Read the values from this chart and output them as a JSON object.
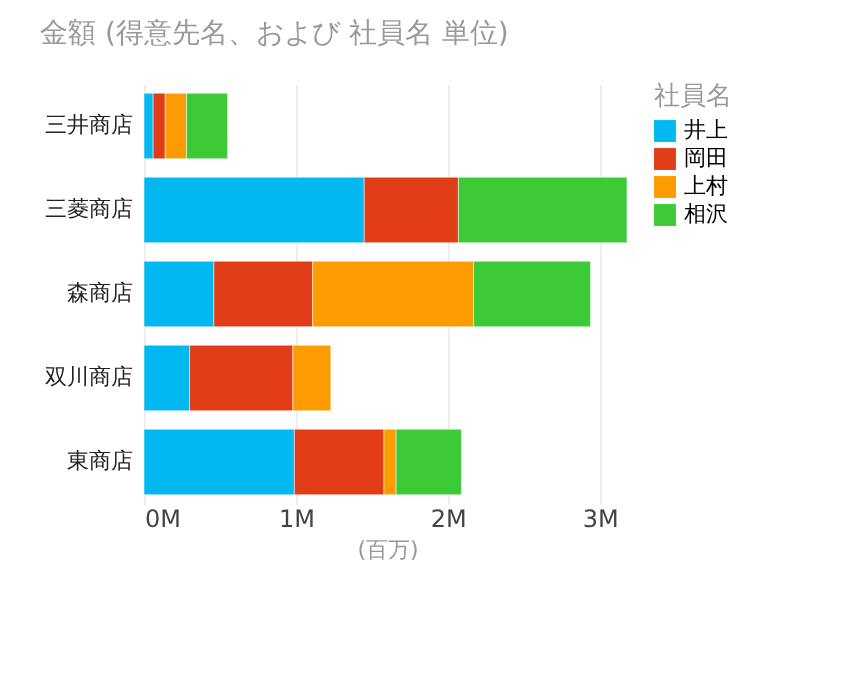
{
  "chart_data": {
    "type": "bar",
    "orientation": "horizontal",
    "stacked": true,
    "title": "金額 (得意先名、および 社員名 単位)",
    "xlabel": "(百万)",
    "legend_title": "社員名",
    "legend": "top right",
    "grid": "x",
    "categories": [
      "三井商店",
      "三菱商店",
      "森商店",
      "双川商店",
      "東商店"
    ],
    "series": [
      {
        "name": "井上",
        "color": "#01b8f0",
        "values": [
          0.06,
          1.45,
          0.46,
          0.3,
          0.99
        ]
      },
      {
        "name": "岡田",
        "color": "#e03c18",
        "values": [
          0.08,
          0.62,
          0.65,
          0.68,
          0.59
        ]
      },
      {
        "name": "上村",
        "color": "#fd9c00",
        "values": [
          0.14,
          null,
          1.06,
          0.25,
          0.08
        ]
      },
      {
        "name": "相沢",
        "color": "#3ccb36",
        "values": [
          0.27,
          1.11,
          0.77,
          null,
          0.43
        ]
      }
    ],
    "xlim": [
      0,
      3.2
    ],
    "xticks": [
      {
        "value": 0,
        "label": "0M"
      },
      {
        "value": 1,
        "label": "1M"
      },
      {
        "value": 2,
        "label": "2M"
      },
      {
        "value": 3,
        "label": "3M"
      }
    ]
  }
}
